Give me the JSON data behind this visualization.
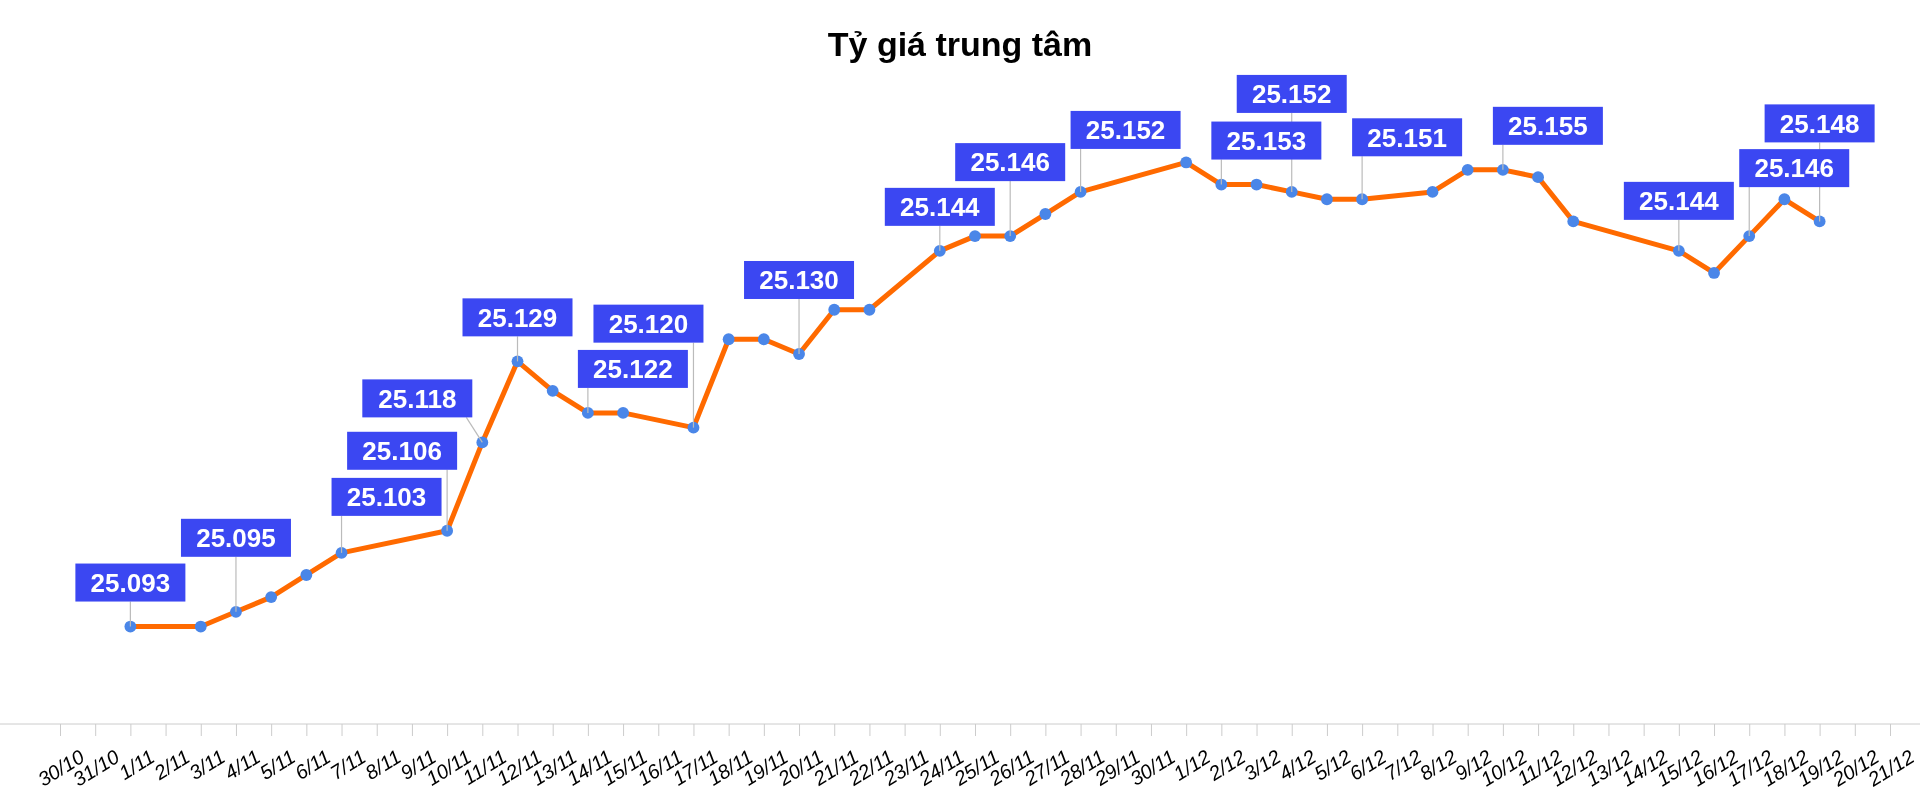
{
  "chart_data": {
    "type": "line",
    "title": "Tỷ giá trung tâm",
    "categories": [
      "30/10",
      "31/10",
      "1/11",
      "2/11",
      "3/11",
      "4/11",
      "5/11",
      "6/11",
      "7/11",
      "8/11",
      "9/11",
      "10/11",
      "11/11",
      "12/11",
      "13/11",
      "14/11",
      "15/11",
      "16/11",
      "17/11",
      "18/11",
      "19/11",
      "20/11",
      "21/11",
      "22/11",
      "23/11",
      "24/11",
      "25/11",
      "26/11",
      "27/11",
      "28/11",
      "29/11",
      "30/11",
      "1/12",
      "2/12",
      "3/12",
      "4/12",
      "5/12",
      "6/12",
      "7/12",
      "8/12",
      "9/12",
      "10/12",
      "11/12",
      "12/12",
      "13/12",
      "14/12",
      "15/12",
      "16/12",
      "17/12",
      "18/12",
      "19/12",
      "20/12",
      "21/12"
    ],
    "series": [
      {
        "color": "#ff6a00",
        "values": [
          null,
          null,
          25.093,
          null,
          25.093,
          25.095,
          25.097,
          25.1,
          25.103,
          null,
          null,
          25.106,
          25.118,
          25.129,
          25.125,
          25.122,
          25.122,
          null,
          25.12,
          25.132,
          25.132,
          25.13,
          25.136,
          25.136,
          null,
          25.144,
          25.146,
          25.146,
          25.149,
          25.152,
          null,
          null,
          25.156,
          25.153,
          25.153,
          25.152,
          25.151,
          25.151,
          null,
          25.152,
          25.155,
          25.155,
          25.154,
          25.148,
          null,
          null,
          25.144,
          25.141,
          25.146,
          25.151,
          25.148,
          null,
          null
        ],
        "value_labels": [
          null,
          null,
          "25.093",
          null,
          null,
          "25.095",
          null,
          null,
          "25.103",
          null,
          null,
          "25.106",
          "25.118",
          "25.129",
          null,
          "25.122",
          null,
          null,
          "25.120",
          null,
          null,
          "25.130",
          null,
          null,
          null,
          "25.144",
          null,
          "25.146",
          null,
          "25.152",
          null,
          null,
          null,
          "25.153",
          null,
          "25.152",
          null,
          "25.151",
          null,
          null,
          null,
          "25.155",
          null,
          null,
          null,
          null,
          "25.144",
          null,
          "25.146",
          null,
          "25.148",
          null,
          null
        ]
      }
    ],
    "tick_labels": "x",
    "marker": "circle",
    "line_style": "solid"
  }
}
